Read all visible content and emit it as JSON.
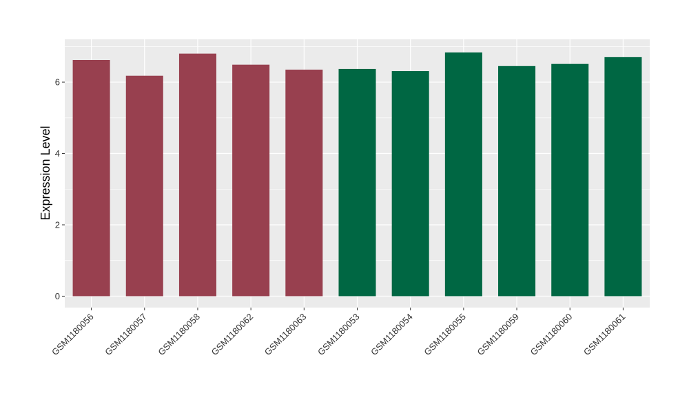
{
  "chart_data": {
    "type": "bar",
    "title": "",
    "xlabel": "",
    "ylabel": "Expression Level",
    "ylim": [
      -0.32,
      7.2
    ],
    "yticks": [
      0,
      2,
      4,
      6
    ],
    "grid": true,
    "categories": [
      "GSM1180056",
      "GSM1180057",
      "GSM1180058",
      "GSM1180062",
      "GSM1180063",
      "GSM1180053",
      "GSM1180054",
      "GSM1180055",
      "GSM1180059",
      "GSM1180060",
      "GSM1180061"
    ],
    "values": [
      6.62,
      6.18,
      6.8,
      6.49,
      6.35,
      6.37,
      6.31,
      6.83,
      6.45,
      6.51,
      6.7
    ],
    "bar_colors": [
      "#98404F",
      "#98404F",
      "#98404F",
      "#98404F",
      "#98404F",
      "#006743",
      "#006743",
      "#006743",
      "#006743",
      "#006743",
      "#006743"
    ],
    "panel_background": "#EBEBEB",
    "gridline_color": "#FFFFFF"
  }
}
